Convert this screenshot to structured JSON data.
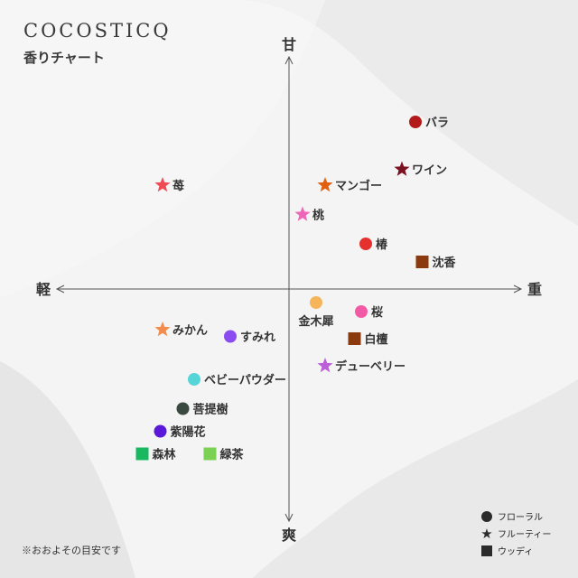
{
  "brand": "COCOSTICQ",
  "subtitle": "香りチャート",
  "footnote": "※おおよその目安です",
  "legend": [
    {
      "shape": "circle",
      "label": "フローラル"
    },
    {
      "shape": "star",
      "label": "フルーティー"
    },
    {
      "shape": "square",
      "label": "ウッディ"
    }
  ],
  "colors": {
    "background": "#f4f4f4",
    "axis": "#555555",
    "text": "#333333"
  },
  "chart_data": {
    "type": "scatter",
    "axes": {
      "top": "甘",
      "bottom": "爽",
      "left": "軽",
      "right": "重"
    },
    "xlim": [
      -10,
      10
    ],
    "ylim": [
      -10,
      10
    ],
    "points": [
      {
        "label": "バラ",
        "shape": "circle",
        "color": "#b31b1b",
        "x": 5.6,
        "y": 7.4
      },
      {
        "label": "ワイン",
        "shape": "star",
        "color": "#7a1020",
        "x": 5.0,
        "y": 5.3
      },
      {
        "label": "苺",
        "shape": "star",
        "color": "#ef4b55",
        "x": -5.6,
        "y": 4.6
      },
      {
        "label": "マンゴー",
        "shape": "star",
        "color": "#e06010",
        "x": 1.6,
        "y": 4.6
      },
      {
        "label": "桃",
        "shape": "star",
        "color": "#ee66b8",
        "x": 0.6,
        "y": 3.3
      },
      {
        "label": "椿",
        "shape": "circle",
        "color": "#e53030",
        "x": 3.4,
        "y": 2.0
      },
      {
        "label": "沈香",
        "shape": "square",
        "color": "#8a3a0e",
        "x": 5.9,
        "y": 1.2
      },
      {
        "label": "金木犀",
        "shape": "circle",
        "color": "#f6b55b",
        "x": 1.2,
        "y": -0.6
      },
      {
        "label": "桜",
        "shape": "circle",
        "color": "#f25aa6",
        "x": 3.2,
        "y": -1.0
      },
      {
        "label": "みかん",
        "shape": "star",
        "color": "#f38b4a",
        "x": -5.6,
        "y": -1.8
      },
      {
        "label": "すみれ",
        "shape": "circle",
        "color": "#8a4cf0",
        "x": -2.6,
        "y": -2.1
      },
      {
        "label": "白檀",
        "shape": "square",
        "color": "#8a3a0e",
        "x": 2.9,
        "y": -2.2
      },
      {
        "label": "デューベリー",
        "shape": "star",
        "color": "#bb5ed8",
        "x": 1.6,
        "y": -3.4
      },
      {
        "label": "ベビーパウダー",
        "shape": "circle",
        "color": "#55d5d8",
        "x": -4.2,
        "y": -4.0
      },
      {
        "label": "菩提樹",
        "shape": "circle",
        "color": "#3a4a40",
        "x": -4.7,
        "y": -5.3
      },
      {
        "label": "紫陽花",
        "shape": "circle",
        "color": "#5a18d8",
        "x": -5.7,
        "y": -6.3
      },
      {
        "label": "森林",
        "shape": "square",
        "color": "#18b860",
        "x": -6.5,
        "y": -7.3
      },
      {
        "label": "緑茶",
        "shape": "square",
        "color": "#7bd154",
        "x": -3.5,
        "y": -7.3
      }
    ]
  }
}
